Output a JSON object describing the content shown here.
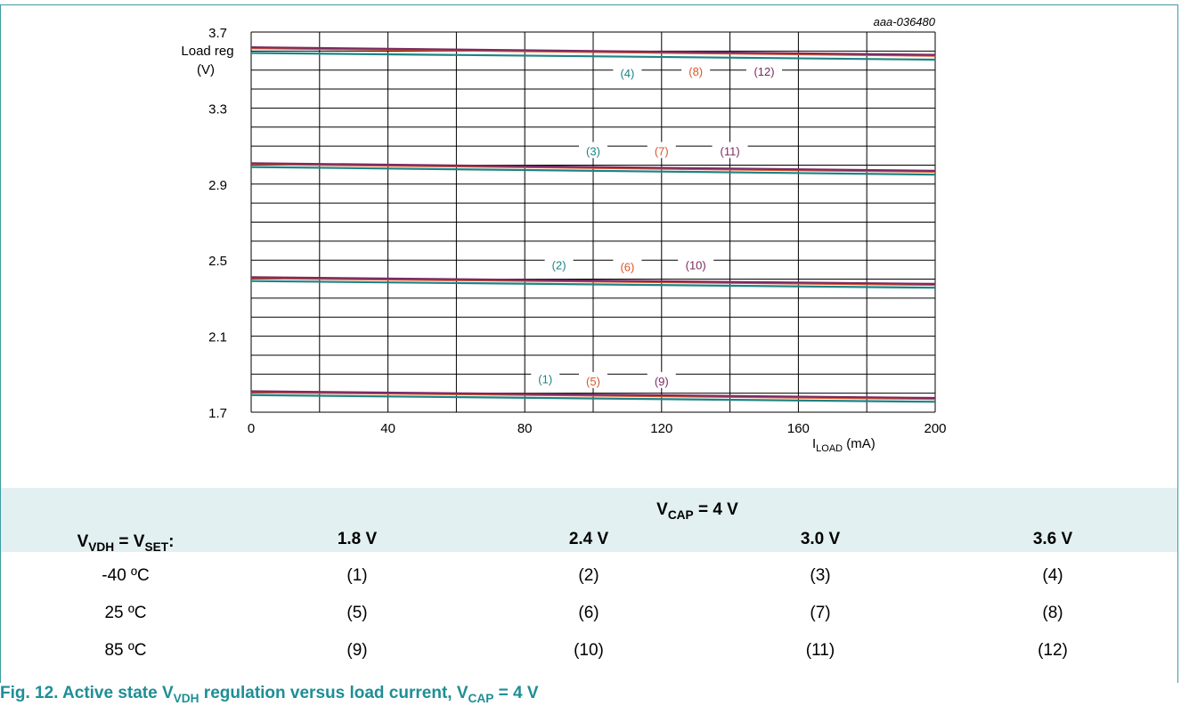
{
  "chart_data": {
    "type": "line",
    "figure_id": "aaa-036480",
    "ylabel_line1": "Load reg",
    "ylabel_line2": "(V)",
    "xlabel_main": "I",
    "xlabel_sub": "LOAD",
    "xlabel_unit": " (mA)",
    "xlim": [
      0,
      200
    ],
    "ylim": [
      1.7,
      3.7
    ],
    "x_ticks": [
      "0",
      "40",
      "80",
      "120",
      "160",
      "200"
    ],
    "y_ticks": [
      "1.7",
      "2.1",
      "2.5",
      "2.9",
      "3.3",
      "3.7"
    ],
    "grid": true,
    "colors": {
      "minus40": "#1e8384",
      "plus25": "#d9572a",
      "plus85": "#7a2a62"
    },
    "series": [
      {
        "id": "1",
        "name": "(1)",
        "group": "minus40",
        "x": [
          0,
          200
        ],
        "y": [
          1.79,
          1.755
        ]
      },
      {
        "id": "5",
        "name": "(5)",
        "group": "plus25",
        "x": [
          0,
          200
        ],
        "y": [
          1.805,
          1.77
        ]
      },
      {
        "id": "9",
        "name": "(9)",
        "group": "plus85",
        "x": [
          0,
          200
        ],
        "y": [
          1.81,
          1.775
        ]
      },
      {
        "id": "2",
        "name": "(2)",
        "group": "minus40",
        "x": [
          0,
          200
        ],
        "y": [
          2.39,
          2.355
        ]
      },
      {
        "id": "6",
        "name": "(6)",
        "group": "plus25",
        "x": [
          0,
          200
        ],
        "y": [
          2.405,
          2.37
        ]
      },
      {
        "id": "10",
        "name": "(10)",
        "group": "plus85",
        "x": [
          0,
          200
        ],
        "y": [
          2.41,
          2.375
        ]
      },
      {
        "id": "3",
        "name": "(3)",
        "group": "minus40",
        "x": [
          0,
          200
        ],
        "y": [
          2.99,
          2.95
        ]
      },
      {
        "id": "7",
        "name": "(7)",
        "group": "plus25",
        "x": [
          0,
          200
        ],
        "y": [
          3.005,
          2.965
        ]
      },
      {
        "id": "11",
        "name": "(11)",
        "group": "plus85",
        "x": [
          0,
          200
        ],
        "y": [
          3.01,
          2.97
        ]
      },
      {
        "id": "4",
        "name": "(4)",
        "group": "minus40",
        "x": [
          0,
          200
        ],
        "y": [
          3.59,
          3.555
        ]
      },
      {
        "id": "8",
        "name": "(8)",
        "group": "plus25",
        "x": [
          0,
          200
        ],
        "y": [
          3.615,
          3.575
        ]
      },
      {
        "id": "12",
        "name": "(12)",
        "group": "plus85",
        "x": [
          0,
          200
        ],
        "y": [
          3.62,
          3.58
        ]
      }
    ],
    "annotations": [
      {
        "text": "(1)",
        "group": "minus40",
        "x": 86,
        "y": 1.87
      },
      {
        "text": "(5)",
        "group": "plus25",
        "x": 100,
        "y": 1.86
      },
      {
        "text": "(9)",
        "group": "plus85",
        "x": 120,
        "y": 1.86
      },
      {
        "text": "(2)",
        "group": "minus40",
        "x": 90,
        "y": 2.47
      },
      {
        "text": "(6)",
        "group": "plus25",
        "x": 110,
        "y": 2.46
      },
      {
        "text": "(10)",
        "group": "plus85",
        "x": 130,
        "y": 2.47
      },
      {
        "text": "(3)",
        "group": "minus40",
        "x": 100,
        "y": 3.07
      },
      {
        "text": "(7)",
        "group": "plus25",
        "x": 120,
        "y": 3.07
      },
      {
        "text": "(11)",
        "group": "plus85",
        "x": 140,
        "y": 3.07
      },
      {
        "text": "(4)",
        "group": "minus40",
        "x": 110,
        "y": 3.48
      },
      {
        "text": "(8)",
        "group": "plus25",
        "x": 130,
        "y": 3.49
      },
      {
        "text": "(12)",
        "group": "plus85",
        "x": 150,
        "y": 3.49
      }
    ]
  },
  "legend": {
    "header_main": "V",
    "header_sub": "CAP",
    "header_suffix": " = 4 V",
    "row_label_v1": "V",
    "row_label_sub1": "VDH",
    "row_label_mid": " = V",
    "row_label_sub2": "SET",
    "row_label_end": ":",
    "columns": [
      "1.8 V",
      "2.4 V",
      "3.0 V",
      "3.6 V"
    ],
    "rows": [
      {
        "label": "-40 ºC",
        "cells": [
          "(1)",
          "(2)",
          "(3)",
          "(4)"
        ]
      },
      {
        "label": "25 ºC",
        "cells": [
          "(5)",
          "(6)",
          "(7)",
          "(8)"
        ]
      },
      {
        "label": "85 ºC",
        "cells": [
          "(9)",
          "(10)",
          "(11)",
          "(12)"
        ]
      }
    ]
  },
  "caption": {
    "prefix": "Fig. 12.  Active state V",
    "sub1": "VDH",
    "middle": " regulation versus load current, V",
    "sub2": "CAP",
    "suffix": " = 4 V"
  }
}
